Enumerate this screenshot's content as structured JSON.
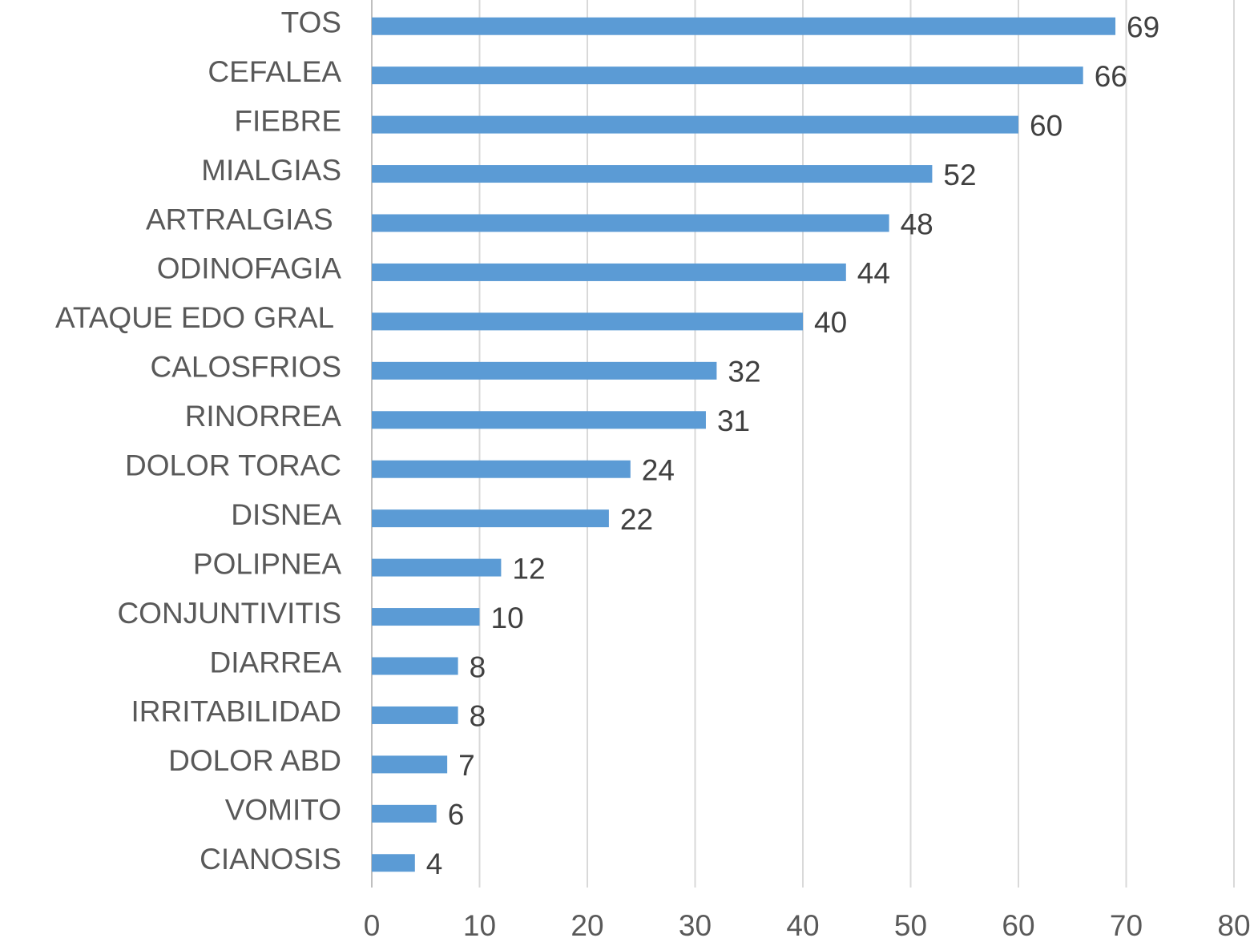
{
  "chart_data": {
    "type": "bar",
    "orientation": "horizontal",
    "categories": [
      "TOS",
      "CEFALEA",
      "FIEBRE",
      "MIALGIAS",
      "ARTRALGIAS ",
      "ODINOFAGIA",
      "ATAQUE EDO GRAL ",
      "CALOSFRIOS",
      "RINORREA",
      "DOLOR TORAC",
      "DISNEA",
      "POLIPNEA",
      "CONJUNTIVITIS",
      "DIARREA",
      "IRRITABILIDAD",
      "DOLOR ABD",
      "VOMITO",
      "CIANOSIS"
    ],
    "values": [
      69,
      66,
      60,
      52,
      48,
      44,
      40,
      32,
      31,
      24,
      22,
      12,
      10,
      8,
      8,
      7,
      6,
      4
    ],
    "color": "#5b9bd5",
    "xlim": [
      0,
      80
    ],
    "xticks": [
      0,
      10,
      20,
      30,
      40,
      50,
      60,
      70,
      80
    ],
    "grid": true
  }
}
